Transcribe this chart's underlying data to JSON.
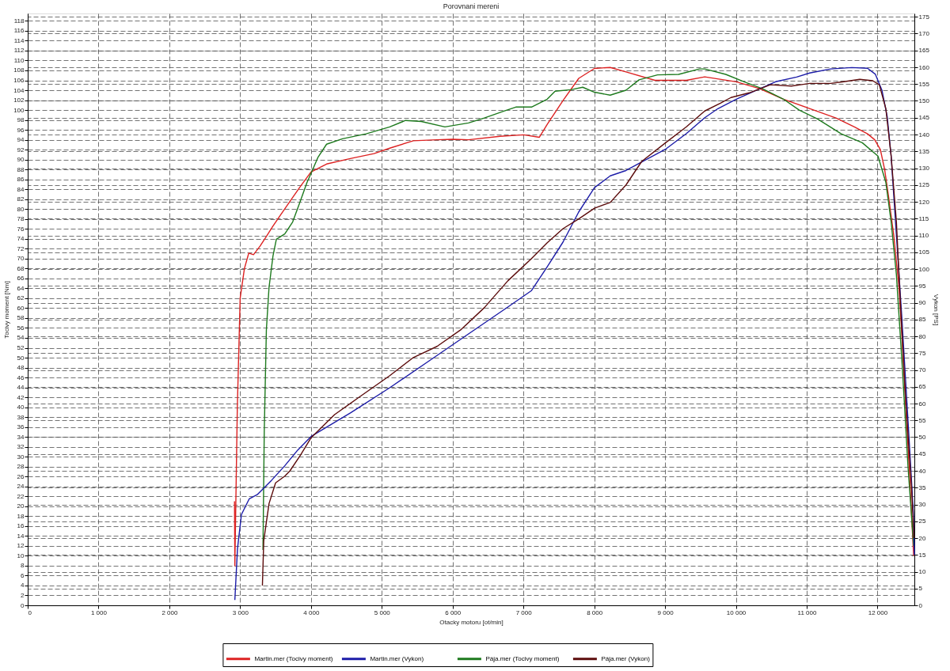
{
  "chart_data": {
    "type": "line",
    "title": "Porovnani mereni",
    "xlabel": "Otacky motoru [ot/min]",
    "ylabel": "Tocivy moment [Nm]",
    "y2label": "Vykon [PS]",
    "xlim": [
      0,
      12520
    ],
    "xticks": [
      0,
      {
        "value": 1000,
        "label": "1 000"
      },
      {
        "value": 2000,
        "label": "2 000"
      },
      {
        "value": 3000,
        "label": "3 000"
      },
      {
        "value": 4000,
        "label": "4 000"
      },
      {
        "value": 5000,
        "label": "5 000"
      },
      {
        "value": 6000,
        "label": "6 000"
      },
      {
        "value": 7000,
        "label": "7 000"
      },
      {
        "value": 8000,
        "label": "8 000"
      },
      {
        "value": 9000,
        "label": "9 000"
      },
      {
        "value": 10000,
        "label": "10 000"
      },
      {
        "value": 11000,
        "label": "11 000"
      },
      {
        "value": 12000,
        "label": "12 000"
      }
    ],
    "ylim": [
      0,
      119.5
    ],
    "yticks": [
      0,
      2,
      4,
      6,
      8,
      10,
      12,
      14,
      16,
      18,
      20,
      22,
      24,
      26,
      28,
      30,
      32,
      34,
      36,
      38,
      40,
      42,
      44,
      46,
      48,
      50,
      52,
      54,
      56,
      58,
      60,
      62,
      64,
      66,
      68,
      70,
      72,
      74,
      76,
      78,
      80,
      82,
      84,
      86,
      88,
      90,
      92,
      94,
      96,
      98,
      100,
      102,
      104,
      106,
      108,
      110,
      112,
      114,
      116,
      118
    ],
    "y2lim": [
      0,
      176
    ],
    "y2ticks": [
      0,
      5,
      10,
      15,
      20,
      25,
      30,
      35,
      40,
      45,
      50,
      55,
      60,
      65,
      70,
      75,
      80,
      85,
      90,
      95,
      100,
      105,
      110,
      115,
      120,
      125,
      130,
      135,
      140,
      145,
      150,
      155,
      160,
      165,
      170,
      175
    ],
    "grid": true,
    "legend": "bottom",
    "series": [
      {
        "name": "Martin.mer (Tocivy moment)",
        "color": "#dd2222",
        "axis": "y",
        "x": [
          2920,
          2925,
          2960,
          3000,
          3060,
          3121,
          3188,
          3280,
          3366,
          3460,
          3555,
          3700,
          3852,
          4000,
          4220,
          4556,
          4890,
          5112,
          5446,
          5780,
          6002,
          6224,
          6669,
          7003,
          7225,
          7336,
          7558,
          7781,
          8003,
          8225,
          8448,
          8856,
          9301,
          9560,
          10005,
          10338,
          10671,
          11038,
          11413,
          11673,
          11858,
          11960,
          12040,
          12100,
          12154,
          12229,
          12303,
          12340,
          12420,
          12510
        ],
        "values": [
          21,
          8,
          40,
          62,
          68,
          71.1,
          70.8,
          72.5,
          74.4,
          76.5,
          78.5,
          81.5,
          84.6,
          87.5,
          89.1,
          90.2,
          91.2,
          92.3,
          93.8,
          94.0,
          94.1,
          94.0,
          94.7,
          95.0,
          94.5,
          97.1,
          101.9,
          106.4,
          108.4,
          108.6,
          107.7,
          106.0,
          106.0,
          106.7,
          105.7,
          104.3,
          102.2,
          100.3,
          98.4,
          96.6,
          95.2,
          94.0,
          92.0,
          88.0,
          82.7,
          74.7,
          64.1,
          55.6,
          35.0,
          10.0
        ]
      },
      {
        "name": "Martin.mer (Vykon)",
        "color": "#1c1ca8",
        "axis": "y2",
        "x": [
          2925,
          2962,
          3018,
          3129,
          3240,
          3444,
          3630,
          3814,
          4000,
          4556,
          5112,
          5669,
          6224,
          6780,
          7114,
          7336,
          7558,
          7781,
          8003,
          8225,
          8448,
          9004,
          9301,
          9560,
          9746,
          10005,
          10338,
          10560,
          10857,
          11042,
          11339,
          11636,
          11858,
          11970,
          12062,
          12136,
          12192,
          12266,
          12340,
          12430,
          12507,
          12520
        ],
        "values": [
          1.6,
          16.8,
          27.0,
          31.7,
          32.9,
          37.2,
          41.5,
          46.2,
          50.2,
          57.2,
          64.7,
          72.7,
          80.7,
          88.7,
          93.6,
          100.7,
          108.0,
          117.0,
          124.2,
          127.7,
          129.3,
          135.6,
          140.3,
          145.0,
          147.7,
          150.5,
          153.6,
          155.7,
          157.1,
          158.3,
          159.5,
          159.9,
          159.7,
          157.9,
          153.2,
          145.4,
          133.6,
          110.1,
          86.6,
          55.0,
          27.1,
          15.0
        ]
      },
      {
        "name": "Pája.mer (Tocivy moment)",
        "color": "#1e7a1e",
        "axis": "y",
        "x": [
          3322,
          3340,
          3370,
          3407,
          3463,
          3511,
          3630,
          3741,
          3852,
          3944,
          4000,
          4100,
          4220,
          4445,
          4779,
          5112,
          5335,
          5557,
          5891,
          6224,
          6447,
          6725,
          6892,
          7114,
          7336,
          7447,
          7670,
          7837,
          8003,
          8225,
          8448,
          8633,
          8893,
          9190,
          9486,
          9560,
          9857,
          10116,
          10375,
          10671,
          10894,
          11153,
          11487,
          11784,
          12006,
          12117,
          12192,
          12266,
          12350,
          12430,
          12510
        ],
        "values": [
          11.2,
          35.0,
          55.6,
          64.1,
          70.5,
          73.9,
          75.0,
          77.4,
          81.7,
          85.4,
          87.2,
          90.5,
          93.1,
          94.2,
          95.2,
          96.6,
          97.9,
          97.7,
          96.6,
          97.4,
          98.4,
          99.8,
          100.6,
          100.6,
          102.2,
          103.8,
          104.1,
          104.6,
          103.6,
          103.0,
          104.0,
          106.1,
          107.1,
          107.2,
          108.3,
          108.3,
          107.2,
          105.7,
          104.3,
          102.2,
          100.0,
          98.2,
          95.2,
          93.4,
          90.7,
          85.4,
          77.4,
          66.8,
          48.0,
          28.0,
          12.0
        ]
      },
      {
        "name": "Pája.mer (Vykon)",
        "color": "#5c0c0c",
        "axis": "y2",
        "x": [
          3314,
          3333,
          3407,
          3500,
          3630,
          3703,
          3852,
          4000,
          4333,
          4667,
          5112,
          5446,
          5780,
          6113,
          6447,
          6780,
          7114,
          7336,
          7558,
          7781,
          8003,
          8225,
          8448,
          8670,
          9004,
          9301,
          9560,
          9782,
          9930,
          10190,
          10486,
          10783,
          11042,
          11339,
          11524,
          11747,
          11932,
          12025,
          12117,
          12192,
          12266,
          12321,
          12400,
          12480,
          12515
        ],
        "values": [
          5.9,
          19.2,
          30.2,
          36.4,
          38.4,
          40.0,
          44.7,
          49.8,
          56.7,
          61.7,
          68.3,
          73.7,
          77.0,
          81.9,
          88.5,
          96.5,
          103.1,
          107.8,
          112.0,
          114.9,
          118.1,
          119.8,
          125.0,
          132.0,
          137.5,
          142.3,
          147.0,
          149.3,
          151.0,
          152.4,
          154.8,
          154.4,
          155.2,
          155.2,
          155.7,
          156.4,
          156.0,
          154.8,
          147.7,
          133.6,
          114.1,
          90.5,
          60.0,
          35.0,
          20.0
        ]
      }
    ]
  }
}
